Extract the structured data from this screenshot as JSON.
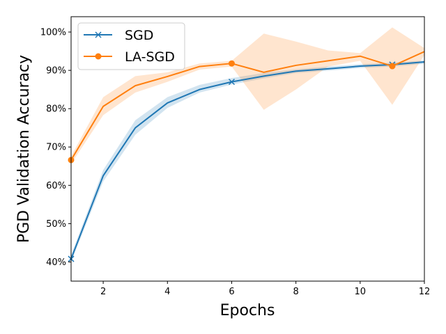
{
  "chart_data": {
    "type": "line",
    "xlabel": "Epochs",
    "ylabel": "PGD Validation Accuracy",
    "xlim": [
      1,
      12
    ],
    "ylim": [
      35,
      104
    ],
    "x_ticks": [
      2,
      4,
      6,
      8,
      10,
      12
    ],
    "y_ticks": [
      40,
      50,
      60,
      70,
      80,
      90,
      100
    ],
    "y_tick_format": "percent",
    "legend_position": "top-left",
    "x": [
      1,
      2,
      3,
      4,
      5,
      6,
      7,
      8,
      9,
      10,
      11,
      12
    ],
    "series": [
      {
        "name": "SGD",
        "color": "#1f77b4",
        "marker": "x",
        "marker_x": [
          1,
          6,
          11
        ],
        "values": [
          40.8,
          62.5,
          75.0,
          81.5,
          85.0,
          87.0,
          88.5,
          89.8,
          90.4,
          91.1,
          91.5,
          92.2
        ],
        "band_lower": [
          40.0,
          61.0,
          73.2,
          80.2,
          84.2,
          86.3,
          87.9,
          89.3,
          89.9,
          90.6,
          91.0,
          91.7
        ],
        "band_upper": [
          41.8,
          64.0,
          77.0,
          83.0,
          86.2,
          88.0,
          89.3,
          90.3,
          91.0,
          91.6,
          92.0,
          92.6
        ]
      },
      {
        "name": "LA-SGD",
        "color": "#ff7f0e",
        "marker": "o",
        "marker_x": [
          1,
          6,
          11
        ],
        "values": [
          66.6,
          80.6,
          86.0,
          88.4,
          91.0,
          91.8,
          89.5,
          91.3,
          92.5,
          93.7,
          91.1,
          94.9
        ],
        "band_lower": [
          65.6,
          78.3,
          84.2,
          87.0,
          90.2,
          91.0,
          79.7,
          85.0,
          91.0,
          92.5,
          81.0,
          94.0
        ],
        "band_upper": [
          67.6,
          83.0,
          88.5,
          89.5,
          91.8,
          92.5,
          99.6,
          97.5,
          95.2,
          94.5,
          101.2,
          95.8
        ]
      }
    ]
  }
}
